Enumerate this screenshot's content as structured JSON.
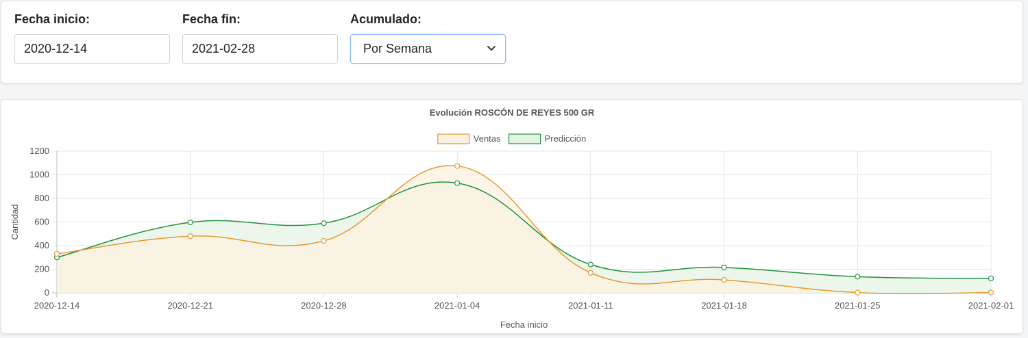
{
  "filters": {
    "start": {
      "label": "Fecha inicio:",
      "value": "2020-12-14"
    },
    "end": {
      "label": "Fecha fin:",
      "value": "2021-02-28"
    },
    "accumulated": {
      "label": "Acumulado:",
      "value": "Por Semana",
      "icon": "chevron-down-icon"
    }
  },
  "chart_data": {
    "type": "area",
    "title": "Evolución ROSCÓN DE REYES 500 GR",
    "xlabel": "Fecha inicio",
    "ylabel": "Cantidad",
    "categories": [
      "2020-12-14",
      "2020-12-21",
      "2020-12-28",
      "2021-01-04",
      "2021-01-11",
      "2021-01-18",
      "2021-01-25",
      "2021-02-01"
    ],
    "ylim": [
      0,
      1200
    ],
    "yticks": [
      0,
      200,
      400,
      600,
      800,
      1000,
      1200
    ],
    "grid": true,
    "legend_position": "top-center",
    "series": [
      {
        "name": "Ventas",
        "values": [
          330,
          480,
          440,
          1075,
          170,
          110,
          2,
          2
        ],
        "color": "#e69a2e",
        "fill": "#fdf1e1"
      },
      {
        "name": "Predicción",
        "values": [
          300,
          597,
          590,
          930,
          240,
          215,
          137,
          122
        ],
        "color": "#21923e",
        "fill": "#e6f3e4"
      }
    ]
  }
}
